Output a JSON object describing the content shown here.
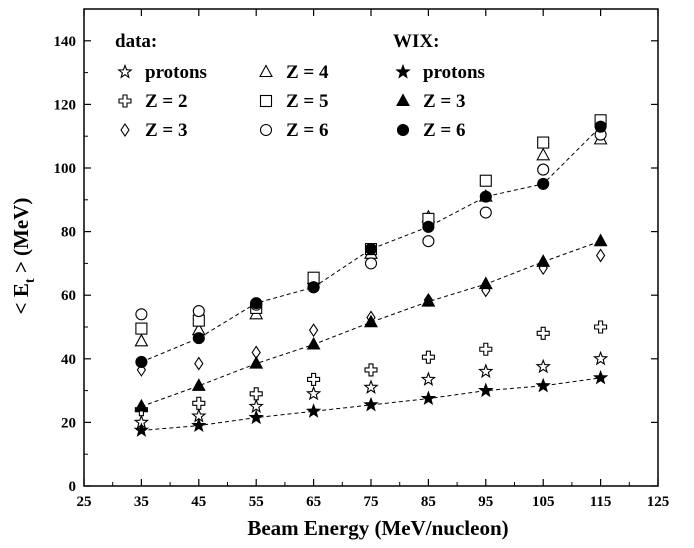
{
  "chart_data": {
    "type": "scatter",
    "xlabel": "Beam Energy (MeV/nucleon)",
    "ylabel": {
      "prefix": "< E",
      "subscript": "t",
      "suffix": " > (MeV)"
    },
    "xlim": [
      25,
      125
    ],
    "ylim": [
      0,
      150
    ],
    "x_ticks": [
      25,
      35,
      45,
      55,
      65,
      75,
      85,
      95,
      105,
      115,
      125
    ],
    "y_ticks": [
      0,
      20,
      40,
      60,
      80,
      100,
      120,
      140
    ],
    "grid": false,
    "legend_placement": "top-left",
    "legend": {
      "data_heading": "data:",
      "wix_heading": "WIX:"
    },
    "series": [
      {
        "name": "protons",
        "group": "data",
        "marker": "open-star",
        "x": [
          35,
          45,
          55,
          65,
          75,
          85,
          95,
          105,
          115
        ],
        "y": [
          20,
          22,
          25,
          29,
          31,
          33.5,
          36,
          37.5,
          40
        ]
      },
      {
        "name": "Z = 2",
        "group": "data",
        "marker": "open-cross",
        "x": [
          35,
          45,
          55,
          65,
          75,
          85,
          95,
          105,
          115
        ],
        "y": [
          24,
          26,
          29,
          33.5,
          36.5,
          40.5,
          43,
          48,
          50
        ]
      },
      {
        "name": "Z = 3",
        "group": "data",
        "marker": "open-diamond",
        "x": [
          35,
          45,
          55,
          65,
          75,
          85,
          95,
          105,
          115
        ],
        "y": [
          36.5,
          38.5,
          42,
          49,
          53,
          58.5,
          61.5,
          68.5,
          72.5
        ]
      },
      {
        "name": "Z = 4",
        "group": "data",
        "marker": "open-triangle",
        "x": [
          35,
          45,
          55,
          65,
          75,
          85,
          95,
          105,
          115
        ],
        "y": [
          45.5,
          49,
          54,
          65,
          73,
          84.5,
          91,
          104,
          109
        ]
      },
      {
        "name": "Z = 5",
        "group": "data",
        "marker": "open-square",
        "x": [
          35,
          45,
          55,
          65,
          75,
          85,
          95,
          105,
          115
        ],
        "y": [
          49.5,
          52,
          56,
          65.5,
          74.5,
          84,
          96,
          108,
          115
        ]
      },
      {
        "name": "Z = 6",
        "group": "data",
        "marker": "open-circle",
        "x": [
          35,
          45,
          55,
          65,
          75,
          85,
          95,
          105,
          115
        ],
        "y": [
          54,
          55,
          57,
          62.5,
          70,
          77,
          86,
          99.5,
          110.5
        ]
      },
      {
        "name": "protons",
        "group": "WIX",
        "marker": "filled-star",
        "line": "dashed",
        "x": [
          35,
          45,
          55,
          65,
          75,
          85,
          95,
          105,
          115
        ],
        "y": [
          17.5,
          19,
          21.5,
          23.5,
          25.5,
          27.5,
          30,
          31.5,
          34
        ]
      },
      {
        "name": "Z = 3",
        "group": "WIX",
        "marker": "filled-triangle",
        "line": "dashed",
        "x": [
          35,
          45,
          55,
          65,
          75,
          85,
          95,
          105,
          115
        ],
        "y": [
          25,
          31.5,
          38.5,
          44.5,
          51.5,
          58,
          63.5,
          70.5,
          77
        ]
      },
      {
        "name": "Z = 6",
        "group": "WIX",
        "marker": "filled-circle",
        "line": "dashed",
        "x": [
          35,
          45,
          55,
          65,
          75,
          85,
          95,
          105,
          115
        ],
        "y": [
          39,
          46.5,
          57.5,
          62.5,
          74.5,
          81.5,
          91,
          95,
          113
        ]
      }
    ]
  }
}
